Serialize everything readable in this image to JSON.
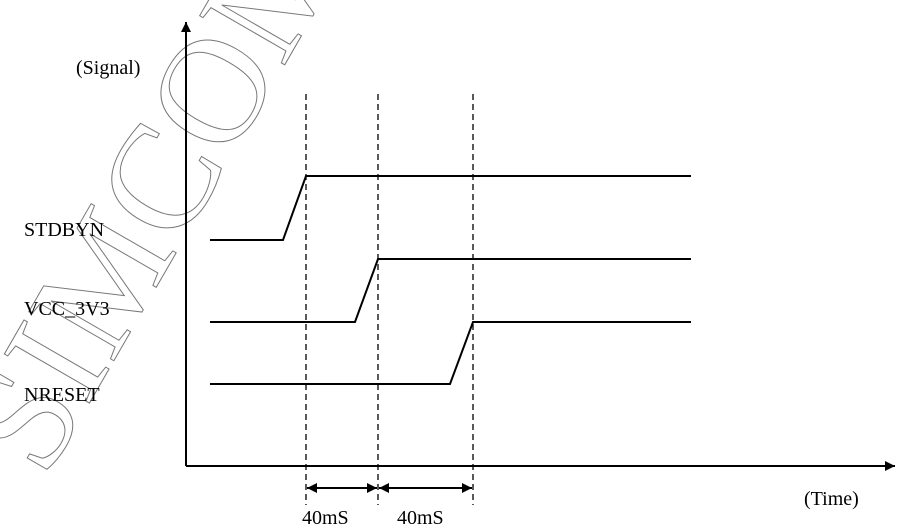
{
  "axis": {
    "y_label": "(Signal)",
    "x_label": "(Time)"
  },
  "signals": [
    {
      "name": "STDBYN"
    },
    {
      "name": "VCC_3V3"
    },
    {
      "name": "NRESET"
    }
  ],
  "intervals": [
    {
      "label": "40mS"
    },
    {
      "label": "40mS"
    }
  ],
  "watermark": {
    "text": "SIMCOM CONFIDENTIAL"
  },
  "colors": {
    "line": "#000000",
    "watermark": "#777777"
  }
}
